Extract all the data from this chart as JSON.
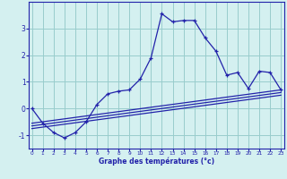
{
  "xlabel": "Graphe des températures (°c)",
  "bg_color": "#d4f0f0",
  "line_color": "#2222aa",
  "grid_color": "#99cccc",
  "x": [
    0,
    1,
    2,
    3,
    4,
    5,
    6,
    7,
    8,
    9,
    10,
    11,
    12,
    13,
    14,
    15,
    16,
    17,
    18,
    19,
    20,
    21,
    22,
    23
  ],
  "main_line": [
    0.0,
    -0.55,
    -0.9,
    -1.1,
    -0.9,
    -0.5,
    0.15,
    0.55,
    0.65,
    0.7,
    1.1,
    1.9,
    3.55,
    3.25,
    3.3,
    3.3,
    2.65,
    2.15,
    1.25,
    1.35,
    0.75,
    1.4,
    1.35,
    0.7
  ],
  "line2_x": [
    0,
    23
  ],
  "line2_y": [
    -0.55,
    0.7
  ],
  "line3_x": [
    0,
    23
  ],
  "line3_y": [
    -0.65,
    0.6
  ],
  "line4_x": [
    0,
    23
  ],
  "line4_y": [
    -0.75,
    0.5
  ],
  "ylim": [
    -1.5,
    4.0
  ],
  "yticks": [
    -1,
    0,
    1,
    2,
    3
  ],
  "xlim": [
    -0.3,
    23.3
  ]
}
